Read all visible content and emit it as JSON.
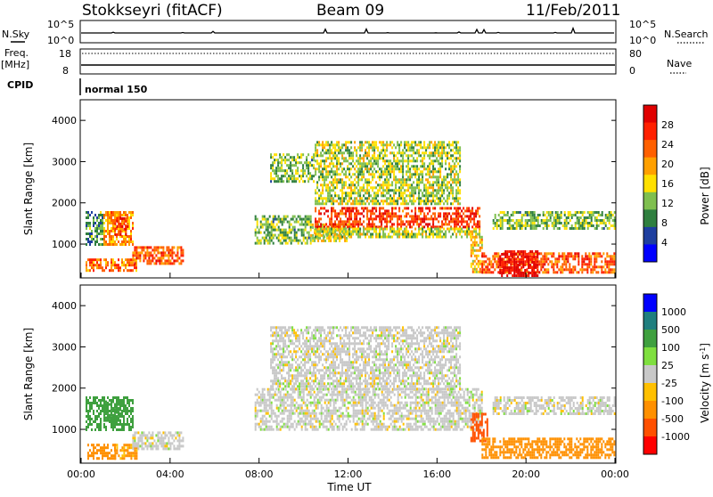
{
  "header": {
    "station": "Stokkseyri (fitACF)",
    "beam": "Beam 09",
    "date": "11/Feb/2011"
  },
  "top_panels": {
    "nsky_label": "N.Sky",
    "nsky_ticks": [
      "10^5",
      "10^0"
    ],
    "nsearch_label": "N.Search",
    "nsearch_ticks": [
      "10^5",
      "10^0"
    ],
    "freq_label_line1": "Freq.",
    "freq_label_line2": "[MHz]",
    "freq_ticks": [
      "18",
      "8"
    ],
    "nave_label": "Nave",
    "nave_ticks": [
      "80",
      "0"
    ],
    "cpid_label": "CPID",
    "cpid_value": "normal 150"
  },
  "colors": {
    "power_scale": [
      "#0000ff",
      "#1e3f9f",
      "#2f7f3f",
      "#7fbf4f",
      "#ffe000",
      "#ffa000",
      "#ff6000",
      "#ff2000",
      "#e00000"
    ],
    "velocity_scale": [
      "#ff0000",
      "#ff5000",
      "#ff9000",
      "#ffc000",
      "#c8c8c8",
      "#7fdf3f",
      "#3fa03f",
      "#207f7f",
      "#0000ff"
    ],
    "ground_scatter": "#c8c8c8"
  },
  "chart_data": [
    {
      "type": "heatmap",
      "name": "power",
      "xlabel": "",
      "ylabel": "Slant Range [km]",
      "xlim": [
        "00:00",
        "24:00"
      ],
      "ylim": [
        180,
        4500
      ],
      "yticks": [
        "1000",
        "2000",
        "3000",
        "4000"
      ],
      "colorbar_label": "Power [dB]",
      "colorbar_ticks": [
        "4",
        "8",
        "12",
        "16",
        "20",
        "24",
        "28"
      ],
      "colorbar_range": [
        0,
        32
      ],
      "regions": [
        {
          "t": [
            0.2,
            1.0
          ],
          "r": [
            1000,
            1800
          ],
          "v": 10
        },
        {
          "t": [
            1.0,
            2.3
          ],
          "r": [
            1000,
            1800
          ],
          "v": 20
        },
        {
          "t": [
            1.5,
            2.1
          ],
          "r": [
            1200,
            1650
          ],
          "v": 28
        },
        {
          "t": [
            0.2,
            2.5
          ],
          "r": [
            350,
            650
          ],
          "v": 22
        },
        {
          "t": [
            2.3,
            4.6
          ],
          "r": [
            500,
            950
          ],
          "v": 24
        },
        {
          "t": [
            7.8,
            10.3
          ],
          "r": [
            1000,
            1700
          ],
          "v": 12
        },
        {
          "t": [
            10.3,
            12.0
          ],
          "r": [
            1100,
            1500
          ],
          "v": 16
        },
        {
          "t": [
            10.5,
            17.9
          ],
          "r": [
            1400,
            1900
          ],
          "v": 26
        },
        {
          "t": [
            10.5,
            17.9
          ],
          "r": [
            1200,
            1400
          ],
          "v": 14
        },
        {
          "t": [
            10.5,
            17.0
          ],
          "r": [
            2000,
            3500
          ],
          "v": 14
        },
        {
          "t": [
            8.5,
            10.5
          ],
          "r": [
            2500,
            3200
          ],
          "v": 12
        },
        {
          "t": [
            17.5,
            18.0
          ],
          "r": [
            300,
            1200
          ],
          "v": 18
        },
        {
          "t": [
            18.0,
            24.0
          ],
          "r": [
            300,
            800
          ],
          "v": 24
        },
        {
          "t": [
            18.8,
            20.5
          ],
          "r": [
            250,
            850
          ],
          "v": 30
        },
        {
          "t": [
            18.5,
            24.0
          ],
          "r": [
            1350,
            1800
          ],
          "v": 12
        }
      ]
    },
    {
      "type": "heatmap",
      "name": "velocity",
      "xlabel": "Time UT",
      "ylabel": "Slant Range [km]",
      "xlim": [
        "00:00",
        "24:00"
      ],
      "ylim": [
        180,
        4500
      ],
      "xticks": [
        "00:00",
        "04:00",
        "08:00",
        "12:00",
        "16:00",
        "20:00",
        "00:00"
      ],
      "yticks": [
        "1000",
        "2000",
        "3000",
        "4000"
      ],
      "colorbar_label": "Velocity [m s^-1]",
      "colorbar_ticks": [
        "1000",
        "500",
        "100",
        "25",
        "-25",
        "-100",
        "-500",
        "-1000"
      ],
      "regions": [
        {
          "t": [
            0.2,
            1.5
          ],
          "r": [
            300,
            650
          ],
          "v": -150
        },
        {
          "t": [
            1.5,
            2.5
          ],
          "r": [
            300,
            650
          ],
          "v": -120
        },
        {
          "t": [
            0.2,
            2.3
          ],
          "r": [
            1000,
            1800
          ],
          "v": 150
        },
        {
          "t": [
            1.0,
            1.8
          ],
          "r": [
            1200,
            1700
          ],
          "v": 300
        },
        {
          "t": [
            2.3,
            4.6
          ],
          "r": [
            500,
            950
          ],
          "v": 0
        },
        {
          "t": [
            7.8,
            18.0
          ],
          "r": [
            1000,
            2000
          ],
          "v": 0
        },
        {
          "t": [
            8.5,
            17.0
          ],
          "r": [
            2000,
            3500
          ],
          "v": 0
        },
        {
          "t": [
            17.5,
            18.3
          ],
          "r": [
            700,
            1400
          ],
          "v": -600
        },
        {
          "t": [
            18.0,
            24.0
          ],
          "r": [
            300,
            800
          ],
          "v": -180
        },
        {
          "t": [
            18.5,
            24.0
          ],
          "r": [
            1350,
            1800
          ],
          "v": 0
        }
      ]
    }
  ]
}
